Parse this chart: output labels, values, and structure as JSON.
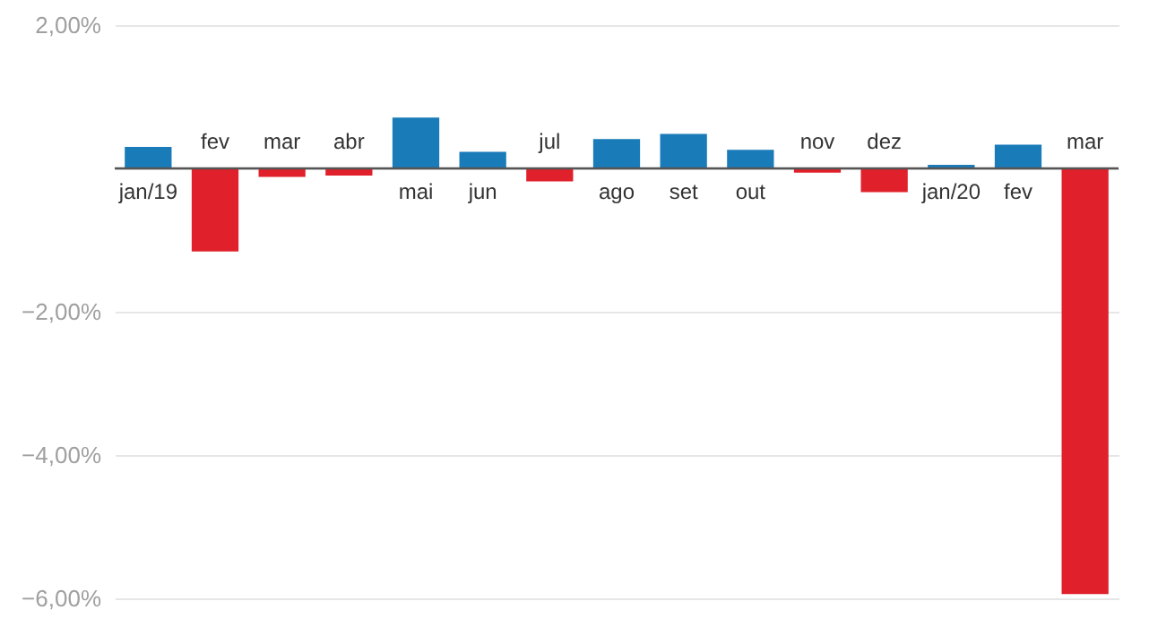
{
  "chart_data": {
    "type": "bar",
    "categories": [
      "jan/19",
      "fev",
      "mar",
      "abr",
      "mai",
      "jun",
      "jul",
      "ago",
      "set",
      "out",
      "nov",
      "dez",
      "jan/20",
      "fev",
      "mar"
    ],
    "values": [
      0.3,
      -1.16,
      -0.12,
      -0.1,
      0.71,
      0.23,
      -0.18,
      0.41,
      0.48,
      0.26,
      -0.06,
      -0.33,
      0.05,
      0.33,
      -5.94
    ],
    "colors": [
      "#1a7bb9",
      "#e0202a",
      "#e0202a",
      "#e0202a",
      "#1a7bb9",
      "#1a7bb9",
      "#e0202a",
      "#1a7bb9",
      "#1a7bb9",
      "#1a7bb9",
      "#e0202a",
      "#e0202a",
      "#1a7bb9",
      "#1a7bb9",
      "#e0202a"
    ],
    "ylim": [
      -6,
      2
    ],
    "yticks": [
      {
        "value": 2,
        "label": "2,00%"
      },
      {
        "value": 0,
        "label": null
      },
      {
        "value": -2,
        "label": "−2,00%"
      },
      {
        "value": -4,
        "label": "−4,00%"
      },
      {
        "value": -6,
        "label": "−6,00%"
      }
    ],
    "grid": "y"
  }
}
